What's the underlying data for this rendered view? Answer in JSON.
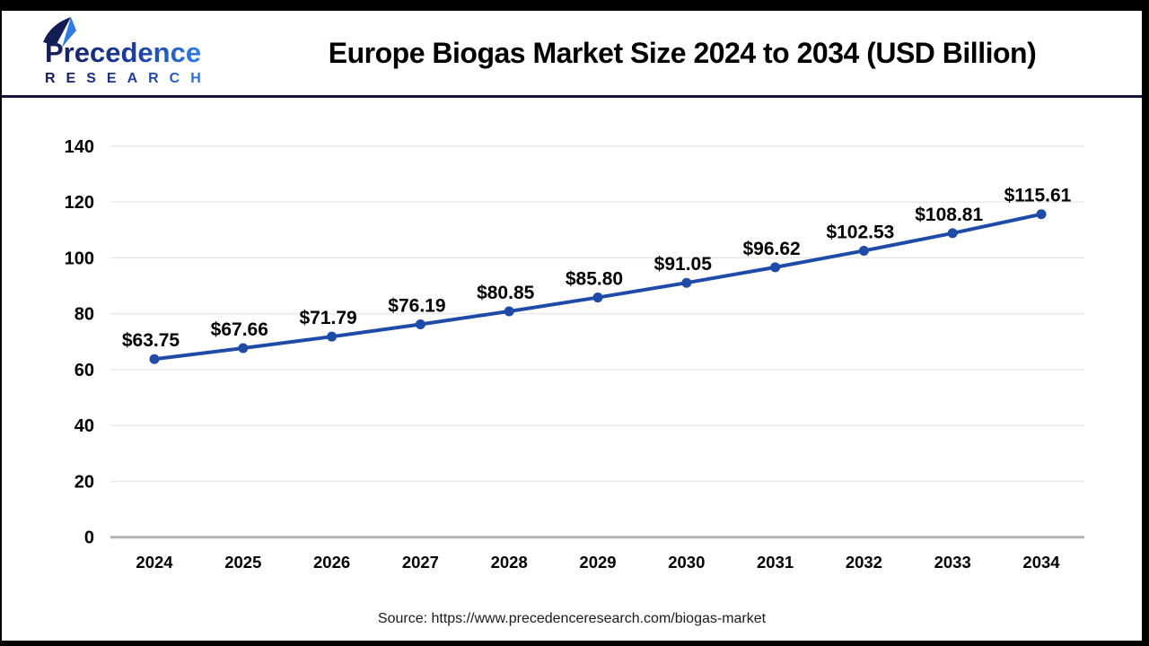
{
  "colors": {
    "frame": "#000000",
    "separator": "#15153F",
    "line": "#1F4BA8",
    "grid": "#E9E9E9",
    "axis_line": "#B3B3B3",
    "text": "#000000",
    "source_text": "#1A1A1A",
    "logo_navy": "#141C54",
    "logo_mid": "#1D3C9E",
    "logo_blue": "#2E7CE4"
  },
  "header": {
    "logo": {
      "name_text": "Precedence",
      "subtitle_text": "RESEARCH",
      "icon": "sail-icon"
    },
    "title": "Europe Biogas Market Size 2024 to 2034 (USD Billion)"
  },
  "chart_data": {
    "type": "line",
    "title": "Europe Biogas Market Size 2024 to 2034 (USD Billion)",
    "categories": [
      "2024",
      "2025",
      "2026",
      "2027",
      "2028",
      "2029",
      "2030",
      "2031",
      "2032",
      "2033",
      "2034"
    ],
    "values": [
      63.75,
      67.66,
      71.79,
      76.19,
      80.85,
      85.8,
      91.05,
      96.62,
      102.53,
      108.81,
      115.61
    ],
    "point_labels": [
      "$63.75",
      "$67.66",
      "$71.79",
      "$76.19",
      "$80.85",
      "$85.80",
      "$91.05",
      "$96.62",
      "$102.53",
      "$108.81",
      "$115.61"
    ],
    "xlabel": "",
    "ylabel": "",
    "ylim": [
      0,
      140
    ],
    "yticks": [
      0,
      20,
      40,
      60,
      80,
      100,
      120,
      140
    ],
    "grid": true,
    "legend": "none"
  },
  "footer": {
    "source": "Source: https://www.precedenceresearch.com/biogas-market"
  }
}
